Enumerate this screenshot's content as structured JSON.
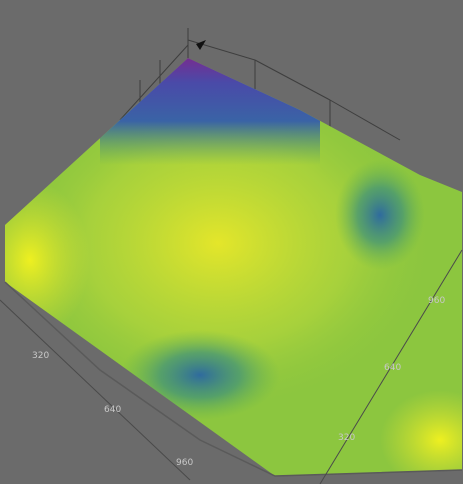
{
  "axes": {
    "left": [
      "320",
      "640",
      "960"
    ],
    "right": [
      "960",
      "640",
      "320"
    ]
  }
}
